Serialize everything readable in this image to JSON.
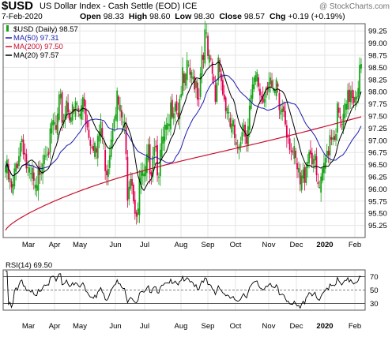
{
  "header": {
    "symbol": "$USD",
    "description": "US Dollar Index - Cash Settle (EOD)",
    "exchange": "ICE",
    "watermark": "@ StockCharts.com",
    "date": "7-Feb-2020",
    "open_label": "Open",
    "open": "98.33",
    "high_label": "High",
    "high": "98.60",
    "low_label": "Low",
    "low": "98.30",
    "close_label": "Close",
    "close": "98.57",
    "chg_label": "Chg",
    "chg": "+0.19 (+0.19%)"
  },
  "colors": {
    "up": "#16a316",
    "down": "#e0004f",
    "ma50": "#1c1cb0",
    "ma200": "#c8102e",
    "ma20": "#000000",
    "grid": "#e6e6e6"
  },
  "chart_data": [
    {
      "type": "candlestick",
      "legend_placement": "top-left",
      "legend": [
        {
          "label": "$USD (Daily) 98.57",
          "style": "candles"
        },
        {
          "label": "MA(50) 97.31",
          "color": "#1c1cb0"
        },
        {
          "label": "MA(200) 97.50",
          "color": "#c8102e"
        },
        {
          "label": "MA(20) 97.57",
          "color": "#000000"
        }
      ],
      "ylim": [
        95.0,
        99.4
      ],
      "yticks": [
        "95.25",
        "95.50",
        "95.75",
        "96.00",
        "96.25",
        "96.50",
        "96.75",
        "97.00",
        "97.25",
        "97.50",
        "97.75",
        "98.00",
        "98.25",
        "98.50",
        "98.75",
        "99.00",
        "99.25"
      ],
      "xticks": [
        "Mar",
        "Apr",
        "May",
        "Jun",
        "Jul",
        "Aug",
        "Sep",
        "Oct",
        "Nov",
        "Dec",
        "2020",
        "Feb"
      ],
      "grid": true,
      "weekly_closes": [
        96.6,
        96.3,
        96.0,
        96.6,
        97.0,
        97.3,
        96.7,
        96.3,
        96.4,
        95.9,
        96.6,
        96.9,
        97.2,
        97.0,
        97.5,
        97.3,
        97.9,
        97.6,
        98.0,
        97.8,
        97.6,
        97.9,
        97.6,
        98.2,
        97.5,
        97.3,
        97.2,
        96.8,
        97.6,
        96.9,
        96.6,
        97.2,
        97.9,
        98.0,
        97.6,
        97.5,
        96.2,
        96.7,
        95.9,
        95.7,
        96.5,
        96.2,
        96.8,
        96.7,
        97.3,
        96.6,
        96.9,
        97.3,
        97.2,
        97.9,
        98.1,
        97.8,
        98.4,
        98.2,
        98.7,
        98.3,
        98.5,
        98.1,
        99.0,
        99.3,
        98.7,
        98.5,
        98.0,
        99.1,
        98.2,
        97.9,
        97.4,
        97.5,
        96.8,
        97.2,
        97.6,
        97.3,
        97.8,
        98.1,
        98.4,
        98.2,
        98.0,
        98.4,
        98.6,
        97.9,
        98.2,
        97.7,
        97.9,
        97.5,
        97.2,
        96.8,
        96.5,
        96.2,
        96.4,
        96.9,
        97.0,
        96.8,
        96.2,
        96.1,
        96.5,
        97.0,
        97.4,
        97.3,
        97.7,
        97.4,
        97.6,
        97.9,
        98.3,
        98.1,
        98.4,
        98.6
      ]
    },
    {
      "type": "line",
      "legend_placement": "top-left",
      "label": "RSI(14) 69.50",
      "ylim": [
        20,
        80
      ],
      "yticks": [
        "70",
        "50",
        "30"
      ],
      "reference_lines": [
        70,
        50,
        30
      ],
      "xticks": [
        "Mar",
        "Apr",
        "May",
        "Jun",
        "Jul",
        "Aug",
        "Sep",
        "Oct",
        "Nov",
        "Dec",
        "2020",
        "Feb"
      ],
      "last_value": 69.5
    }
  ]
}
